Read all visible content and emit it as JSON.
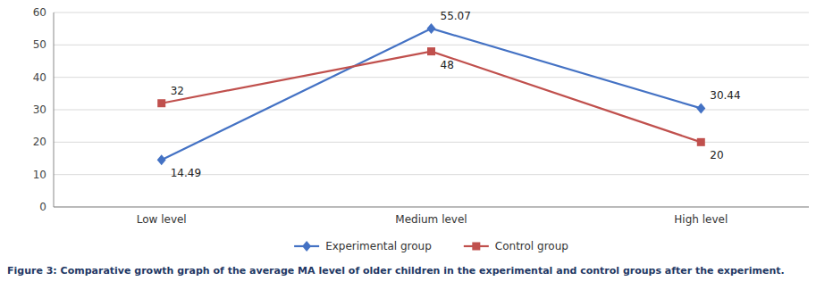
{
  "chart_data": {
    "type": "line",
    "title": "Figure 3: Comparative growth graph of the average MA level of older children in the experimental and control groups after the experiment.",
    "categories": [
      "Low level",
      "Medium level",
      "High level"
    ],
    "series": [
      {
        "name": "Experimental group",
        "color": "#4472C4",
        "marker": "diamond",
        "values": [
          14.49,
          55.07,
          30.44
        ]
      },
      {
        "name": "Control group",
        "color": "#C0504D",
        "marker": "square",
        "values": [
          32,
          48,
          20
        ]
      }
    ],
    "ylim": [
      0,
      60
    ],
    "yticks": [
      0,
      10,
      20,
      30,
      40,
      50,
      60
    ],
    "grid": true,
    "legend": "bottom",
    "data_labels": true
  }
}
